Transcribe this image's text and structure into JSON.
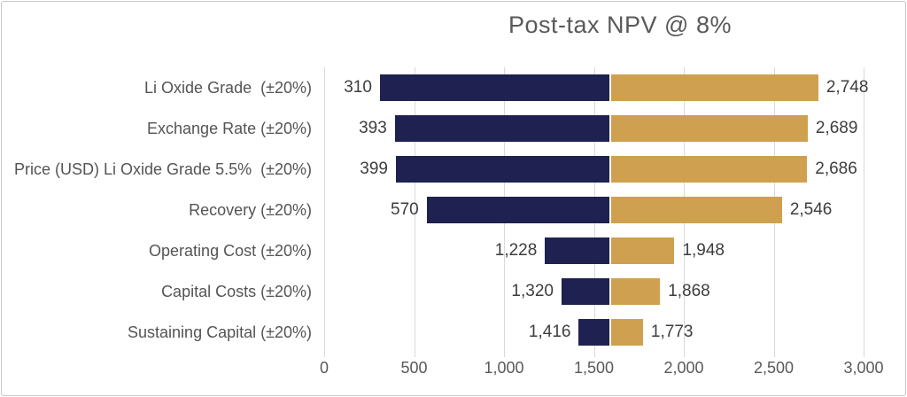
{
  "title": "Post-tax NPV @ 8%",
  "chart_data": {
    "type": "bar",
    "variant": "tornado",
    "orientation": "horizontal",
    "title": "Post-tax NPV @ 8%",
    "categories": [
      "Li Oxide Grade  (±20%)",
      "Exchange Rate (±20%)",
      "Price (USD) Li Oxide Grade 5.5%  (±20%)",
      "Recovery (±20%)",
      "Operating Cost (±20%)",
      "Capital Costs (±20%)",
      "Sustaining Capital (±20%)"
    ],
    "series": [
      {
        "name": "low",
        "color": "#1f2150",
        "values": [
          310,
          393,
          399,
          570,
          1228,
          1320,
          1416
        ],
        "labels": [
          "310",
          "393",
          "399",
          "570",
          "1,228",
          "1,320",
          "1,416"
        ]
      },
      {
        "name": "high",
        "color": "#cfa050",
        "values": [
          2748,
          2689,
          2686,
          2546,
          1948,
          1868,
          1773
        ],
        "labels": [
          "2,748",
          "2,689",
          "2,686",
          "2,546",
          "1,948",
          "1,868",
          "1,773"
        ]
      }
    ],
    "pivot_value": 1590,
    "xlim": [
      0,
      3000
    ],
    "x_ticks": [
      0,
      500,
      1000,
      1500,
      2000,
      2500,
      3000
    ],
    "x_tick_labels": [
      "0",
      "500",
      "1,000",
      "1,500",
      "2,000",
      "2,500",
      "3,000"
    ],
    "grid": true,
    "legend": false,
    "gridline_color": "#d9d9d9",
    "title_color": "#595959",
    "category_color": "#545454",
    "value_label_color": "#3d3d3d",
    "tick_label_color": "#595959"
  }
}
